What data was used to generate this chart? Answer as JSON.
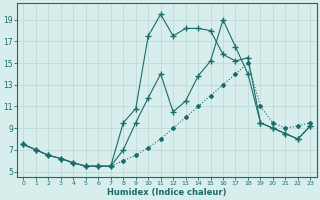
{
  "xlabel": "Humidex (Indice chaleur)",
  "bg_color": "#d7eeec",
  "grid_color": "#b8d8d5",
  "line_color": "#1a6b6b",
  "xlim": [
    -0.5,
    23.5
  ],
  "ylim": [
    4.5,
    20.5
  ],
  "xticks": [
    0,
    1,
    2,
    3,
    4,
    5,
    6,
    7,
    8,
    9,
    10,
    11,
    12,
    13,
    14,
    15,
    16,
    17,
    18,
    19,
    20,
    21,
    22,
    23
  ],
  "yticks": [
    5,
    7,
    9,
    11,
    13,
    15,
    17,
    19
  ],
  "line1_dotted": {
    "x": [
      0,
      1,
      2,
      3,
      4,
      5,
      6,
      7,
      8,
      9,
      10,
      11,
      12,
      13,
      14,
      15,
      16,
      17,
      18,
      19,
      20,
      21,
      22,
      23
    ],
    "y": [
      7.5,
      7.0,
      6.5,
      6.2,
      5.8,
      5.5,
      5.5,
      5.5,
      6.0,
      6.5,
      7.2,
      8.0,
      9.0,
      10.0,
      11.0,
      12.0,
      13.0,
      14.0,
      15.0,
      11.0,
      9.5,
      9.0,
      9.2,
      9.5
    ]
  },
  "line2_solid_jagged": {
    "x": [
      0,
      1,
      2,
      3,
      4,
      5,
      6,
      7,
      8,
      9,
      10,
      11,
      12,
      13,
      14,
      15,
      16,
      17,
      18,
      19,
      20,
      21,
      22,
      23
    ],
    "y": [
      7.5,
      7.0,
      6.5,
      6.2,
      5.8,
      5.5,
      5.5,
      5.5,
      9.5,
      10.8,
      17.5,
      19.5,
      17.5,
      18.2,
      18.2,
      18.0,
      15.8,
      15.2,
      15.5,
      9.5,
      9.0,
      8.5,
      8.0,
      9.2
    ]
  },
  "line3_solid_smooth": {
    "x": [
      0,
      1,
      2,
      3,
      4,
      5,
      6,
      7,
      8,
      9,
      10,
      11,
      12,
      13,
      14,
      15,
      16,
      17,
      18,
      19,
      20,
      21,
      22,
      23
    ],
    "y": [
      7.5,
      7.0,
      6.5,
      6.2,
      5.8,
      5.5,
      5.5,
      5.5,
      7.0,
      9.5,
      11.8,
      14.0,
      10.5,
      11.5,
      13.8,
      15.2,
      19.0,
      16.5,
      14.0,
      9.5,
      9.0,
      8.5,
      8.0,
      9.2
    ]
  }
}
